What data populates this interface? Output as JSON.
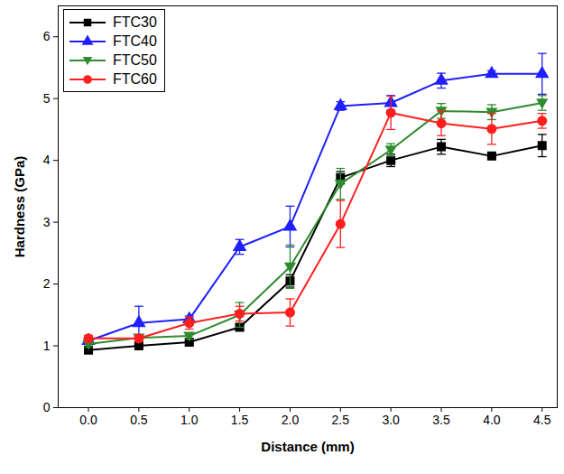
{
  "chart_data": {
    "type": "line",
    "x_label": "Distance (mm)",
    "y_label": "Hardness (GPa)",
    "x": [
      0,
      0.5,
      1,
      1.5,
      2,
      2.5,
      3,
      3.5,
      4,
      4.5
    ],
    "series": [
      {
        "name": "FTC30",
        "color": "#000000",
        "marker": "square",
        "values": [
          0.93,
          1.0,
          1.06,
          1.3,
          2.05,
          3.72,
          4.0,
          4.22,
          4.07,
          4.24
        ],
        "errors": [
          0.05,
          0.03,
          0.03,
          0.05,
          0.1,
          0.1,
          0.1,
          0.12,
          0.03,
          0.18
        ]
      },
      {
        "name": "FTC40",
        "color": "#1f1fff",
        "marker": "triangle",
        "values": [
          1.08,
          1.37,
          1.43,
          2.6,
          2.93,
          4.88,
          4.93,
          5.29,
          5.4,
          5.4
        ],
        "errors": [
          0.05,
          0.27,
          0.05,
          0.12,
          0.33,
          0.07,
          0.12,
          0.12,
          0.05,
          0.33
        ]
      },
      {
        "name": "FTC50",
        "color": "#2e8b2e",
        "marker": "triangle-down",
        "values": [
          1.03,
          1.13,
          1.16,
          1.5,
          2.28,
          3.62,
          4.17,
          4.8,
          4.78,
          4.93
        ],
        "errors": [
          0.05,
          0.05,
          0.05,
          0.2,
          0.35,
          0.25,
          0.1,
          0.12,
          0.12,
          0.12
        ]
      },
      {
        "name": "FTC60",
        "color": "#ff1f1f",
        "marker": "circle",
        "values": [
          1.12,
          1.12,
          1.37,
          1.52,
          1.54,
          2.97,
          4.77,
          4.6,
          4.51,
          4.64
        ],
        "errors": [
          0.05,
          0.05,
          0.1,
          0.12,
          0.22,
          0.38,
          0.27,
          0.2,
          0.25,
          0.12
        ]
      }
    ],
    "xlim": [
      -0.3,
      4.65
    ],
    "xticks": [
      {
        "value": 0,
        "label": "0.0"
      },
      0.5,
      {
        "value": 1,
        "label": "1.0"
      },
      1.5,
      {
        "value": 2,
        "label": "2.0"
      },
      2.5,
      {
        "value": 3,
        "label": "3.0"
      },
      3.5,
      {
        "value": 4,
        "label": "4.0"
      },
      4.5
    ],
    "ylim": [
      0,
      6.5
    ],
    "yticks": [
      0,
      1,
      2,
      3,
      4,
      5,
      6
    ],
    "grid": false,
    "legend": "top-left"
  }
}
